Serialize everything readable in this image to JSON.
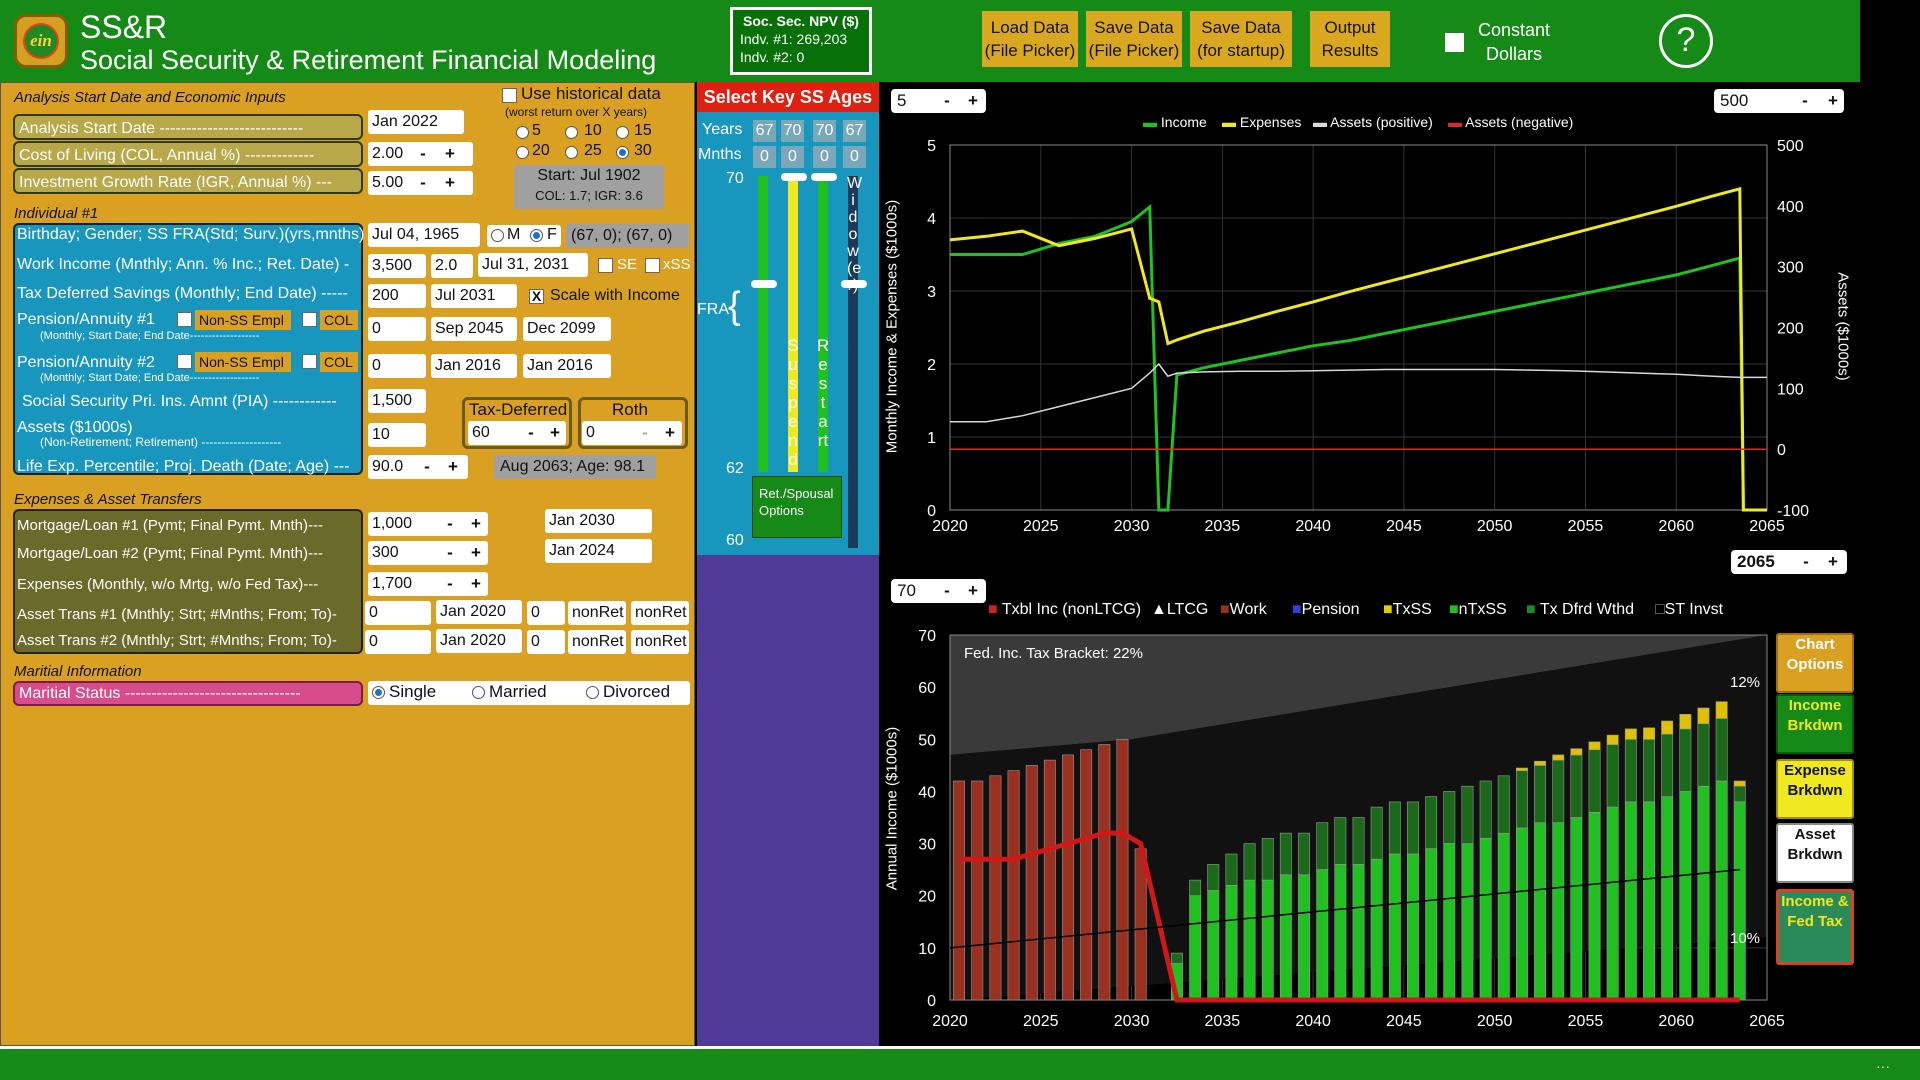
{
  "header": {
    "logo_text": "ein",
    "title": "SS&R",
    "subtitle": "Social Security & Retirement Financial Modeling",
    "npv": {
      "title": "Soc. Sec. NPV ($)",
      "indv1": "Indv. #1:  269,203",
      "indv2": "Indv. #2:  0"
    },
    "buttons": [
      {
        "l1": "Load Data",
        "l2": "(File Picker)"
      },
      {
        "l1": "Save Data",
        "l2": "(File Picker)"
      },
      {
        "l1": "Save Data",
        "l2": "(for startup)"
      },
      {
        "l1": "Output",
        "l2": "Results"
      }
    ],
    "constant_dollars": {
      "l1": "Constant",
      "l2": "Dollars"
    },
    "help": "?"
  },
  "analysis": {
    "heading": "Analysis Start Date and Economic Inputs",
    "start_label": "Analysis Start Date ---------------------------",
    "start_val": "Jan 2022",
    "col_label": "Cost of Living (COL, Annual %) -------------",
    "col_val": "2.00",
    "igr_label": "Investment Growth Rate (IGR, Annual %) ---",
    "igr_val": "5.00",
    "hist_label": "Use historical data",
    "hist_sub": "(worst return over X years)",
    "radios": [
      "5",
      "10",
      "15",
      "20",
      "25",
      "30"
    ],
    "hist_start": "Start:  Jul 1902",
    "hist_colgr": "COL: 1.7; IGR: 3.6"
  },
  "individual": {
    "heading": "Individual #1",
    "bday_label": "Birthday; Gender; SS FRA(Std; Surv.)(yrs,mnths)",
    "bday": "Jul 04, 1965",
    "g_m": "M",
    "g_f": "F",
    "fra": "(67, 0); (67, 0)",
    "work_label": "Work Income (Mnthly; Ann. % Inc.; Ret. Date) -",
    "work_amt": "3,500",
    "work_inc": "2.0",
    "work_ret": "Jul 31, 2031",
    "se": "SE",
    "xss": "xSS",
    "tds_label": "Tax Deferred Savings (Monthly; End Date) -----",
    "tds_amt": "200",
    "tds_end": "Jul 2031",
    "scale": "Scale with Income",
    "p1_label": "Pension/Annuity #1",
    "p1_sub": "(Monthly; Start Date; End Date-------------------",
    "p1_amt": "0",
    "p1_start": "Sep 2045",
    "p1_end": "Dec 2099",
    "p2_label": "Pension/Annuity #2",
    "p2_sub": "(Monthly; Start Date; End Date-------------------",
    "p2_amt": "0",
    "p2_start": "Jan 2016",
    "p2_end": "Jan 2016",
    "nonss": "Non-SS Empl",
    "col": "COL",
    "pia_label": "Social Security Pri. Ins. Amnt (PIA) ------------",
    "pia": "1,500",
    "assets_label": "Assets ($1000s)",
    "assets_sub": "(Non-Retirement;     Retirement) --------------------",
    "assets_nr": "10",
    "taxdef_label": "Tax-Deferred",
    "taxdef_val": "60",
    "roth_label": "Roth",
    "roth_val": "0",
    "life_label": "Life Exp. Percentile; Proj. Death (Date; Age) ---",
    "life_pct": "90.0",
    "death": "Aug 2063; Age: 98.1"
  },
  "expenses": {
    "heading": "Expenses & Asset Transfers",
    "m1_label": "Mortgage/Loan #1 (Pymt; Final Pymt. Mnth)---",
    "m1_amt": "1,000",
    "m1_date": "Jan 2030",
    "m2_label": "Mortgage/Loan #2 (Pymt; Final Pymt. Mnth)---",
    "m2_amt": "300",
    "m2_date": "Jan 2024",
    "exp_label": "Expenses (Monthly,  w/o Mrtg,  w/o Fed Tax)---",
    "exp_amt": "1,700",
    "at1_label": "Asset Trans #1 (Mnthly; Strt; #Mnths; From; To)-",
    "at1": [
      "0",
      "Jan 2020",
      "0",
      "nonRet",
      "nonRet"
    ],
    "at2_label": "Asset Trans #2 (Mnthly; Strt; #Mnths; From; To)-",
    "at2": [
      "0",
      "Jan 2020",
      "0",
      "nonRet",
      "nonRet"
    ]
  },
  "marital": {
    "heading": "Maritial Information",
    "label": "Maritial Status ---------------------------------",
    "single": "Single",
    "married": "Married",
    "divorced": "Divorced"
  },
  "key_ages": {
    "title": "Select Key SS Ages",
    "years_label": "Years",
    "months_label": "Mnths",
    "years": [
      "67",
      "70",
      "70",
      "67"
    ],
    "months": [
      "0",
      "0",
      "0",
      "0"
    ],
    "scale_top": "70",
    "scale_mid": "62",
    "scale_bot": "60",
    "fra": "FRA",
    "suspend": "Suspend",
    "restart": "Restart",
    "widow": "Widow(er)",
    "ret_opts": "Ret./Spousal Options"
  },
  "chart_top": {
    "spin_left": "5",
    "spin_right": "500",
    "year_spin": "2065",
    "left_axis_label": "Monthly Income & Expenses ($1000s)",
    "right_axis_label": "Assets ($1000s)",
    "legend": [
      "Income",
      "Expenses",
      "Assets (positive)",
      "Assets (negative)"
    ]
  },
  "chart_bottom": {
    "spin_left": "70",
    "axis_label": "Annual Income ($1000s)",
    "bracket_note": "Fed. Inc. Tax Bracket: 22%",
    "pct_high": "12%",
    "pct_low": "10%",
    "legend": [
      "Txbl Inc (nonLTCG)",
      "LTCG",
      "Work",
      "Pension",
      "TxSS",
      "nTxSS",
      "Tx Dfrd Wthd",
      "ST Invst"
    ]
  },
  "chart_options": {
    "title": "Chart Options",
    "income": "Income Brkdwn",
    "expense": "Expense Brkdwn",
    "asset": "Asset Brkdwn",
    "tax": "Income & Fed Tax"
  },
  "colors": {
    "header_green": "#168a16",
    "panel_gold": "#d9a021",
    "income": "#1fc21f",
    "expenses": "#f0e820",
    "assets_pos": "#d8d8d8",
    "assets_neg": "#d03020",
    "work": "#9a3020",
    "txss": "#e0c000"
  },
  "chart_data": [
    {
      "type": "line",
      "title": "",
      "xlabel": "",
      "ylabel": "Monthly Income & Expenses ($1000s)",
      "y2label": "Assets ($1000s)",
      "x": [
        2020,
        2022,
        2024,
        2026,
        2028,
        2030,
        2031,
        2031.5,
        2032,
        2032.5,
        2034,
        2036,
        2038,
        2040,
        2042,
        2044,
        2046,
        2048,
        2050,
        2052,
        2054,
        2056,
        2058,
        2060,
        2062,
        2063.5,
        2063.7,
        2065
      ],
      "xlim": [
        2020,
        2065
      ],
      "ylim": [
        0,
        5
      ],
      "y2lim": [
        -100,
        500
      ],
      "series": [
        {
          "name": "Income",
          "axis": "left",
          "values": [
            3.5,
            3.5,
            3.5,
            3.65,
            3.75,
            3.95,
            4.15,
            0,
            0,
            1.85,
            1.95,
            2.05,
            2.15,
            2.25,
            2.32,
            2.42,
            2.52,
            2.62,
            2.72,
            2.82,
            2.92,
            3.02,
            3.12,
            3.22,
            3.35,
            3.45,
            0,
            0
          ]
        },
        {
          "name": "Expenses",
          "axis": "left",
          "values": [
            3.7,
            3.75,
            3.82,
            3.62,
            3.72,
            3.85,
            2.9,
            2.85,
            2.28,
            2.33,
            2.45,
            2.58,
            2.72,
            2.85,
            2.99,
            3.12,
            3.25,
            3.38,
            3.51,
            3.64,
            3.77,
            3.9,
            4.03,
            4.16,
            4.3,
            4.4,
            0,
            0
          ]
        },
        {
          "name": "Assets (positive)",
          "axis": "right",
          "values": [
            45,
            45,
            55,
            70,
            85,
            100,
            125,
            140,
            120,
            125,
            127,
            128,
            128,
            129,
            130,
            131,
            131,
            131,
            131,
            130,
            129,
            127,
            125,
            123,
            120,
            118,
            118,
            118
          ]
        },
        {
          "name": "Assets (negative)",
          "axis": "right",
          "values": [
            0,
            0,
            0,
            0,
            0,
            0,
            0,
            0,
            0,
            0,
            0,
            0,
            0,
            0,
            0,
            0,
            0,
            0,
            0,
            0,
            0,
            0,
            0,
            0,
            0,
            0,
            0,
            0
          ]
        }
      ]
    },
    {
      "type": "bar",
      "title": "",
      "xlabel": "",
      "ylabel": "Annual Income ($1000s)",
      "xlim": [
        2020,
        2065
      ],
      "ylim": [
        0,
        70
      ],
      "categories": [
        2020,
        2021,
        2022,
        2023,
        2024,
        2025,
        2026,
        2027,
        2028,
        2029,
        2030,
        2031,
        2032,
        2033,
        2034,
        2035,
        2036,
        2037,
        2038,
        2039,
        2040,
        2041,
        2042,
        2043,
        2044,
        2045,
        2046,
        2047,
        2048,
        2049,
        2050,
        2051,
        2052,
        2053,
        2054,
        2055,
        2056,
        2057,
        2058,
        2059,
        2060,
        2061,
        2062,
        2063
      ],
      "series": [
        {
          "name": "Work",
          "values": [
            42,
            42,
            43,
            44,
            45,
            46,
            47,
            48,
            49,
            50,
            29,
            0,
            0,
            0,
            0,
            0,
            0,
            0,
            0,
            0,
            0,
            0,
            0,
            0,
            0,
            0,
            0,
            0,
            0,
            0,
            0,
            0,
            0,
            0,
            0,
            0,
            0,
            0,
            0,
            0,
            0,
            0,
            0,
            0
          ]
        },
        {
          "name": "nTxSS",
          "values": [
            0,
            0,
            0,
            0,
            0,
            0,
            0,
            0,
            0,
            0,
            0,
            0,
            7,
            20,
            21,
            22,
            23,
            23,
            24,
            24,
            25,
            26,
            26,
            27,
            28,
            28,
            29,
            30,
            30,
            31,
            32,
            33,
            34,
            34,
            35,
            36,
            37,
            38,
            38,
            39,
            40,
            41,
            42,
            38
          ]
        },
        {
          "name": "Tx Dfrd Wthd",
          "values": [
            0,
            0,
            0,
            0,
            0,
            0,
            0,
            0,
            0,
            0,
            0,
            0,
            2,
            3,
            5,
            6,
            7,
            8,
            8,
            8,
            9,
            9,
            9,
            10,
            10,
            10,
            10,
            10,
            11,
            11,
            11,
            11,
            11,
            12,
            12,
            12,
            12,
            12,
            12,
            12,
            12,
            12,
            12,
            3
          ]
        },
        {
          "name": "TxSS",
          "values": [
            0,
            0,
            0,
            0,
            0,
            0,
            0,
            0,
            0,
            0,
            0,
            0,
            0,
            0,
            0,
            0,
            0,
            0,
            0,
            0,
            0,
            0,
            0,
            0,
            0,
            0,
            0,
            0,
            0,
            0,
            0,
            0.5,
            0.8,
            1,
            1.2,
            1.5,
            1.8,
            2,
            2.2,
            2.5,
            2.8,
            3,
            3.2,
            1
          ]
        },
        {
          "name": "Txbl Inc (nonLTCG)",
          "type": "line",
          "values": [
            27,
            27,
            27,
            27,
            28,
            29,
            30,
            31,
            32,
            32,
            30,
            15,
            0,
            0,
            0,
            0,
            0,
            0,
            0,
            0,
            0,
            0,
            0,
            0,
            0,
            0,
            0,
            0,
            0,
            0,
            0,
            0,
            0,
            0,
            0,
            0,
            0,
            0,
            0,
            0,
            0,
            0,
            0,
            0
          ]
        }
      ]
    }
  ]
}
